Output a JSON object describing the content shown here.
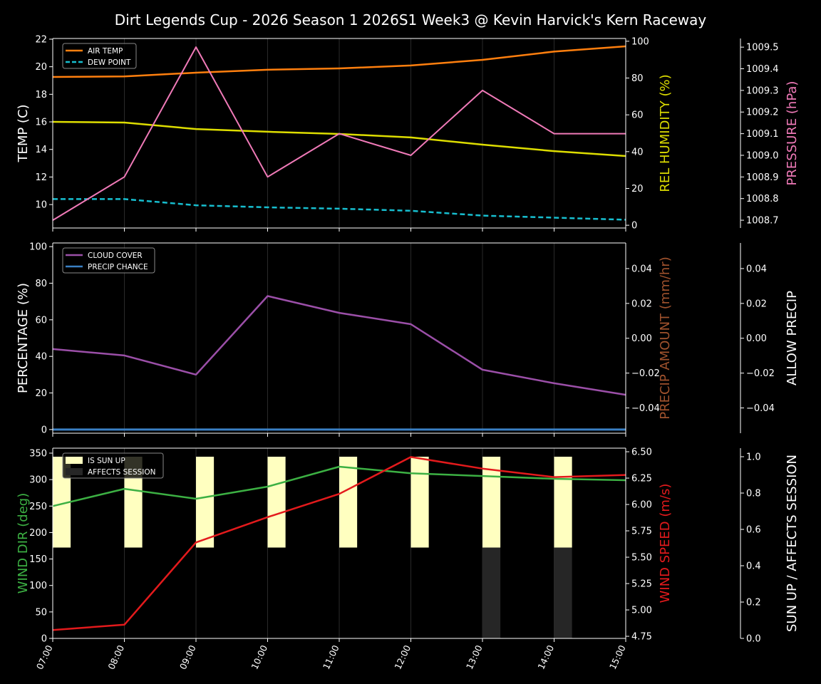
{
  "title": "Dirt Legends Cup - 2026 Season 1 2026S1 Week3 @ Kevin Harvick's Kern Raceway",
  "x_labels": [
    "07:00",
    "08:00",
    "09:00",
    "10:00",
    "11:00",
    "12:00",
    "13:00",
    "14:00",
    "15:00"
  ],
  "chart_data": [
    {
      "type": "line",
      "grid": "vertical",
      "legend_placement": "top-left",
      "x": [
        "07:00",
        "08:00",
        "09:00",
        "10:00",
        "11:00",
        "12:00",
        "13:00",
        "14:00",
        "15:00"
      ],
      "axes": {
        "left": {
          "label": "TEMP (C)",
          "color": "#ffffff",
          "range": [
            8.3,
            22.05
          ],
          "ticks": [
            10,
            12,
            14,
            16,
            18,
            20,
            22
          ],
          "tick_labels": [
            "10",
            "12",
            "14",
            "16",
            "18",
            "20",
            "22"
          ]
        },
        "right": {
          "label": "REL HUMIDITY (%)",
          "color": "#dddd00",
          "range": [
            -1.5,
            101.5
          ],
          "ticks": [
            0,
            20,
            40,
            60,
            80,
            100
          ],
          "tick_labels": [
            "0",
            "20",
            "40",
            "60",
            "80",
            "100"
          ]
        },
        "right2": {
          "label": "PRESSURE (hPa)",
          "color": "#f07ab8",
          "range": [
            1008.664,
            1009.54
          ],
          "ticks": [
            1008.7,
            1008.8,
            1008.9,
            1009.0,
            1009.1,
            1009.2,
            1009.3,
            1009.4,
            1009.5
          ],
          "tick_labels": [
            "1008.7",
            "1008.8",
            "1008.9",
            "1009.0",
            "1009.1",
            "1009.2",
            "1009.3",
            "1009.4",
            "1009.5"
          ]
        }
      },
      "series": [
        {
          "name": "AIR TEMP",
          "legend": true,
          "axis": "left",
          "color": "#ff7f0e",
          "style": "solid",
          "width": 2.5,
          "values": [
            19.26,
            19.3,
            19.57,
            19.78,
            19.88,
            20.09,
            20.5,
            21.1,
            21.48
          ]
        },
        {
          "name": "DEW POINT",
          "legend": true,
          "axis": "left",
          "color": "#17becf",
          "style": "dashed",
          "width": 2.5,
          "values": [
            10.4,
            10.4,
            9.95,
            9.8,
            9.7,
            9.55,
            9.2,
            9.05,
            8.9
          ]
        },
        {
          "axis": "right",
          "color": "#dddd00",
          "style": "solid",
          "width": 2.5,
          "values": [
            56.2,
            55.8,
            52.3,
            50.8,
            49.6,
            47.7,
            43.8,
            40.3,
            37.6
          ]
        },
        {
          "axis": "right2",
          "color": "#f07ab8",
          "style": "solid",
          "width": 2,
          "values": [
            1008.7,
            1008.9,
            1009.5,
            1008.9,
            1009.1,
            1009.0,
            1009.3,
            1009.1,
            1009.1
          ]
        }
      ]
    },
    {
      "type": "line",
      "grid": "vertical",
      "legend_placement": "top-left",
      "x": [
        "07:00",
        "08:00",
        "09:00",
        "10:00",
        "11:00",
        "12:00",
        "13:00",
        "14:00",
        "15:00"
      ],
      "axes": {
        "left": {
          "label": "PERCENTAGE (%)",
          "color": "#ffffff",
          "range": [
            -2,
            102
          ],
          "ticks": [
            0,
            20,
            40,
            60,
            80,
            100
          ],
          "tick_labels": [
            "0",
            "20",
            "40",
            "60",
            "80",
            "100"
          ]
        },
        "right": {
          "label": "PRECIP AMOUNT (mm/hr)",
          "color": "#a0522d",
          "range": [
            -0.0545,
            0.0547
          ],
          "ticks": [
            -0.04,
            -0.02,
            0,
            0.02,
            0.04
          ],
          "tick_labels": [
            "−0.04",
            "−0.02",
            "0.00",
            "0.02",
            "0.04"
          ]
        },
        "right2": {
          "label": "ALLOW PRECIP",
          "color": "#ffffff",
          "range": [
            -0.0545,
            0.0547
          ],
          "ticks": [
            -0.04,
            -0.02,
            0,
            0.02,
            0.04
          ],
          "tick_labels": [
            "−0.04",
            "−0.02",
            "0.00",
            "0.02",
            "0.04"
          ]
        }
      },
      "series": [
        {
          "name": "CLOUD COVER",
          "legend": true,
          "axis": "left",
          "color": "#9b4fa8",
          "style": "solid",
          "width": 2.5,
          "values": [
            44,
            40.5,
            30,
            73,
            63.8,
            57.6,
            32.7,
            25.3,
            19
          ]
        },
        {
          "name": "PRECIP CHANCE",
          "legend": true,
          "axis": "left",
          "color": "#3a80c4",
          "style": "solid",
          "width": 3,
          "values": [
            0,
            0,
            0,
            0,
            0,
            0,
            0,
            0,
            0
          ]
        }
      ]
    },
    {
      "type": "line",
      "grid": "vertical",
      "legend_placement": "top-left",
      "x": [
        "07:00",
        "08:00",
        "09:00",
        "10:00",
        "11:00",
        "12:00",
        "13:00",
        "14:00",
        "15:00"
      ],
      "axes": {
        "left": {
          "label": "WIND DIR (deg)",
          "color": "#3cb043",
          "range": [
            0,
            359.4
          ],
          "ticks": [
            0,
            50,
            100,
            150,
            200,
            250,
            300,
            350
          ],
          "tick_labels": [
            "0",
            "50",
            "100",
            "150",
            "200",
            "250",
            "300",
            "350"
          ]
        },
        "right": {
          "label": "WIND SPEED (m/s)",
          "color": "#e31a1c",
          "range": [
            4.73,
            6.534
          ],
          "ticks": [
            4.75,
            5.0,
            5.25,
            5.5,
            5.75,
            6.0,
            6.25,
            6.5
          ],
          "tick_labels": [
            "4.75",
            "5.00",
            "5.25",
            "5.50",
            "5.75",
            "6.00",
            "6.25",
            "6.50"
          ]
        },
        "right2": {
          "label": "SUN UP / AFFECTS SESSION",
          "color": "#ffffff",
          "range": [
            0,
            1.047
          ],
          "ticks": [
            0,
            0.2,
            0.4,
            0.6,
            0.8,
            1.0
          ],
          "tick_labels": [
            "0.0",
            "0.2",
            "0.4",
            "0.6",
            "0.8",
            "1.0"
          ]
        }
      },
      "bars": [
        {
          "name": "IS SUN UP",
          "axis": "right2",
          "color": "#ffffc0",
          "bottom": 0.5,
          "values": [
            0.5,
            0.5,
            0.5,
            0.5,
            0.5,
            0.5,
            0.5,
            0.5,
            0
          ]
        },
        {
          "name": "AFFECTS SESSION",
          "axis": "right2",
          "color": "#262626",
          "bottom": 0,
          "values": [
            0,
            0,
            0,
            0,
            0,
            0,
            0.5,
            0.5,
            0
          ]
        }
      ],
      "series": [
        {
          "axis": "left",
          "color": "#3cb043",
          "style": "solid",
          "width": 2.5,
          "values": [
            250,
            282.6,
            263.8,
            286.7,
            324.4,
            312,
            306.8,
            301.5,
            298.8
          ]
        },
        {
          "axis": "right",
          "color": "#e31a1c",
          "style": "solid",
          "width": 2.5,
          "values": [
            4.81,
            4.86,
            5.64,
            5.88,
            6.1,
            6.45,
            6.34,
            6.26,
            6.28
          ]
        }
      ]
    }
  ]
}
